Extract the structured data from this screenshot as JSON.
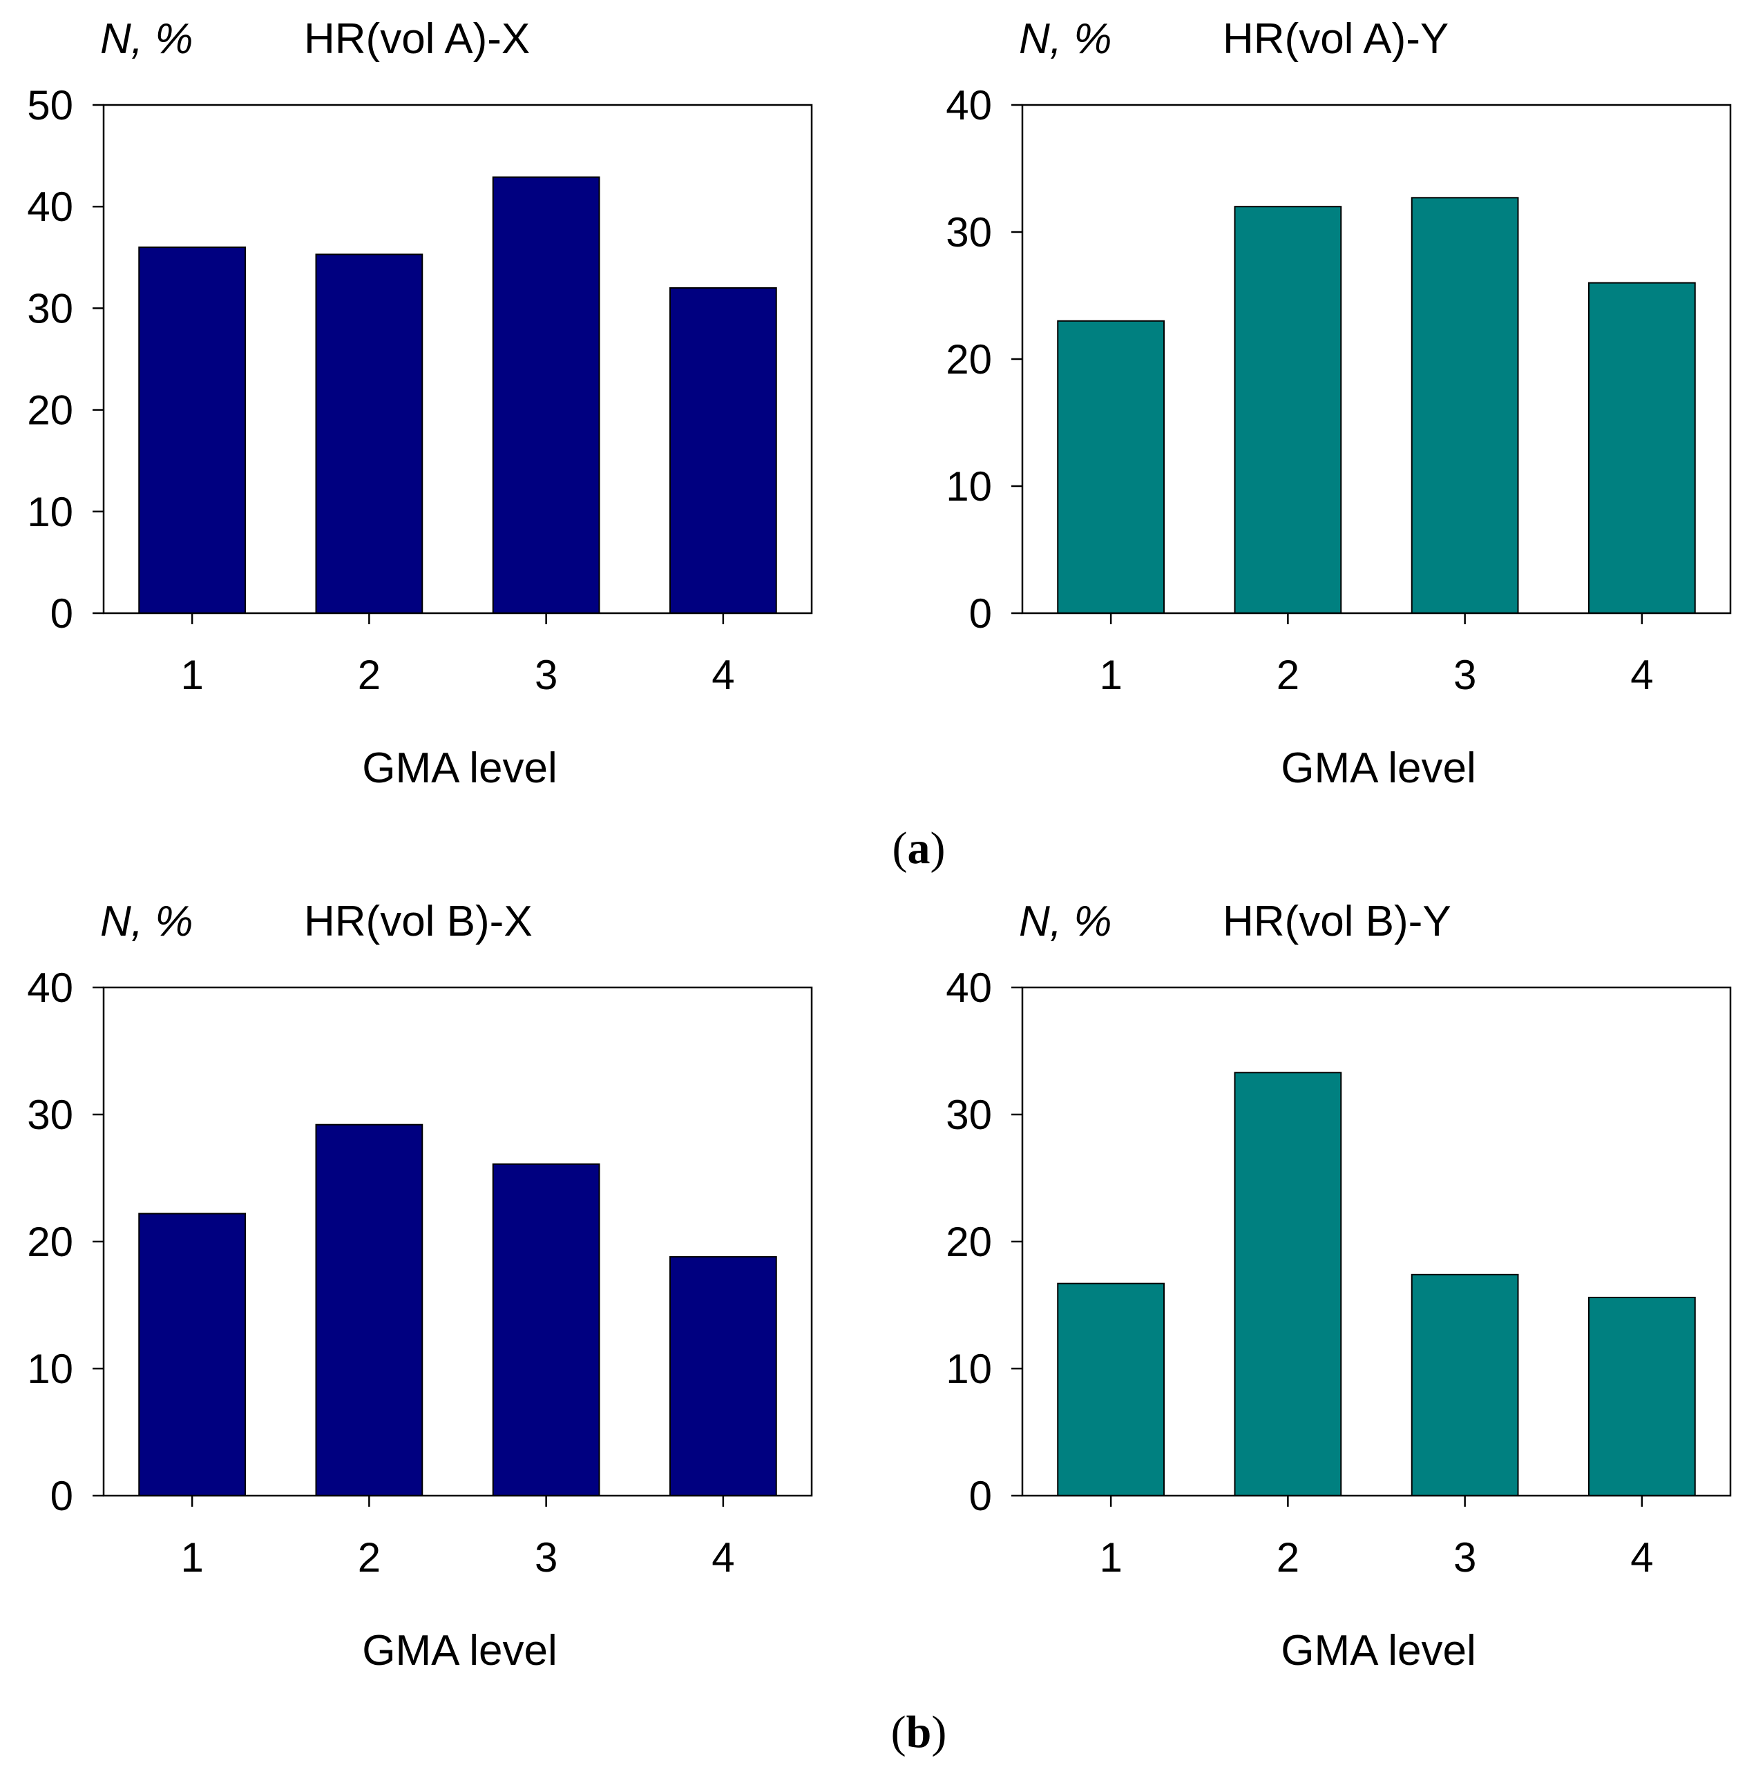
{
  "panel_labels": {
    "a_open": "(",
    "a_bold": "a",
    "a_close": ")",
    "b_open": "(",
    "b_bold": "b",
    "b_close": ")"
  },
  "colors": {
    "navy": "#000080",
    "teal": "#008080",
    "axis": "#000000"
  },
  "chart_data": [
    {
      "type": "bar",
      "title": "HR(vol A)-X",
      "ylabel": "N, %",
      "xlabel": "GMA level",
      "categories": [
        "1",
        "2",
        "3",
        "4"
      ],
      "values": [
        36,
        35.3,
        42.9,
        32
      ],
      "ylim": [
        0,
        50
      ],
      "yticks": [
        0,
        10,
        20,
        30,
        40,
        50
      ],
      "color": "#000080",
      "grid": false
    },
    {
      "type": "bar",
      "title": "HR(vol A)-Y",
      "ylabel": "N, %",
      "xlabel": "GMA level",
      "categories": [
        "1",
        "2",
        "3",
        "4"
      ],
      "values": [
        23,
        32,
        32.7,
        26
      ],
      "ylim": [
        0,
        40
      ],
      "yticks": [
        0,
        10,
        20,
        30,
        40
      ],
      "color": "#008080",
      "grid": false
    },
    {
      "type": "bar",
      "title": "HR(vol B)-X",
      "ylabel": "N, %",
      "xlabel": "GMA level",
      "categories": [
        "1",
        "2",
        "3",
        "4"
      ],
      "values": [
        22.2,
        29.2,
        26.1,
        18.8
      ],
      "ylim": [
        0,
        40
      ],
      "yticks": [
        0,
        10,
        20,
        30,
        40
      ],
      "color": "#000080",
      "grid": false
    },
    {
      "type": "bar",
      "title": "HR(vol B)-Y",
      "ylabel": "N, %",
      "xlabel": "GMA level",
      "categories": [
        "1",
        "2",
        "3",
        "4"
      ],
      "values": [
        16.7,
        33.3,
        17.4,
        15.6
      ],
      "ylim": [
        0,
        40
      ],
      "yticks": [
        0,
        10,
        20,
        30,
        40
      ],
      "color": "#008080",
      "grid": false
    }
  ]
}
